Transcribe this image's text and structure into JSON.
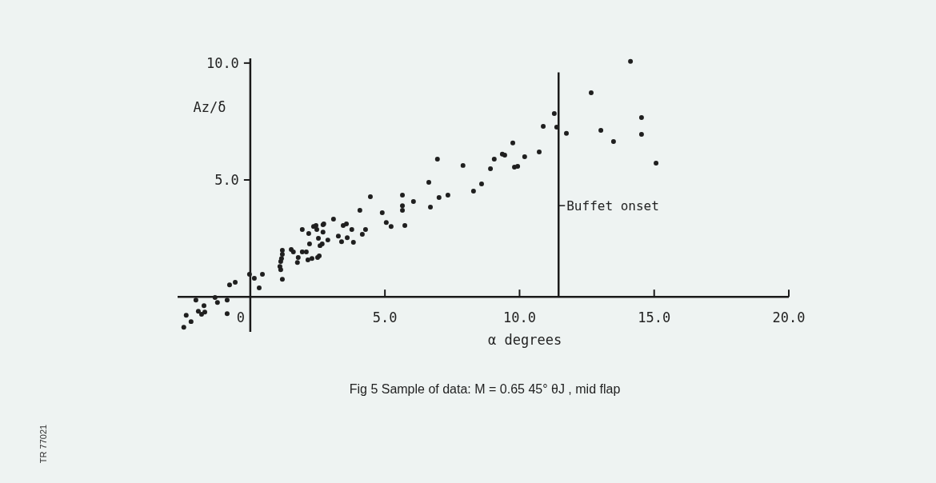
{
  "chart_data": {
    "type": "scatter",
    "xlabel": "α degrees",
    "ylabel": "Az/δ",
    "annotations": [
      "Fig 5    Sample of data:  M = 0.65 45°  θJ , mid flap",
      "TR 77021"
    ],
    "xlim": [
      -2.7,
      20
    ],
    "ylim": [
      -1.5,
      10.2
    ],
    "xticks": [
      {
        "value": 0,
        "label": "0"
      },
      {
        "value": 5,
        "label": "5.0"
      },
      {
        "value": 10,
        "label": "10.0"
      },
      {
        "value": 15,
        "label": "15.0"
      },
      {
        "value": 20,
        "label": "20.0"
      }
    ],
    "yticks": [
      {
        "value": 5,
        "label": "5.0"
      },
      {
        "value": 10,
        "label": "10.0"
      }
    ],
    "marker": "circle",
    "ref_lines": [
      {
        "axis": "x",
        "value": 11.45,
        "label": "Buffet onset",
        "color": "#1a1a1a"
      }
    ],
    "series": [
      {
        "color": "#1f1f1f",
        "x": [
          -2.47,
          -2.2,
          -2.38,
          -2.02,
          -1.93,
          -1.81,
          -1.72,
          -1.69,
          -1.31,
          -1.22,
          -0.86,
          -0.86,
          -0.77,
          -0.56,
          -0.03,
          0.15,
          0.33,
          0.45,
          1.13,
          1.1,
          1.16,
          1.19,
          1.19,
          1.19,
          1.13,
          1.52,
          1.6,
          1.75,
          1.78,
          1.93,
          1.93,
          2.08,
          2.14,
          2.17,
          2.2,
          2.29,
          2.35,
          2.44,
          2.47,
          2.5,
          2.53,
          2.56,
          2.59,
          2.67,
          2.7,
          2.7,
          2.73,
          2.88,
          3.09,
          3.27,
          3.39,
          3.45,
          3.57,
          3.6,
          3.77,
          3.83,
          4.07,
          4.16,
          4.28,
          4.46,
          4.9,
          5.05,
          5.23,
          5.65,
          5.65,
          5.65,
          5.74,
          6.06,
          6.63,
          6.69,
          6.95,
          7.01,
          7.34,
          7.9,
          8.29,
          8.59,
          8.92,
          9.06,
          9.36,
          9.45,
          9.75,
          9.81,
          9.93,
          10.19,
          10.73,
          10.88,
          11.29,
          11.38,
          11.74,
          12.66,
          13.02,
          13.49,
          14.12,
          14.53,
          14.53,
          15.07
        ],
        "values": [
          -1.3,
          -1.06,
          -0.79,
          -0.14,
          -0.62,
          -0.75,
          -0.38,
          -0.65,
          -0.03,
          -0.24,
          -0.14,
          -0.72,
          0.51,
          0.62,
          0.96,
          0.79,
          0.38,
          0.96,
          1.51,
          1.3,
          1.64,
          1.99,
          1.82,
          0.75,
          1.16,
          2.02,
          1.92,
          1.47,
          1.68,
          2.88,
          1.92,
          1.92,
          1.58,
          2.71,
          2.26,
          1.64,
          3.01,
          3.05,
          2.88,
          1.68,
          2.5,
          1.75,
          2.19,
          2.26,
          3.08,
          2.77,
          3.12,
          2.43,
          3.32,
          2.6,
          2.36,
          3.05,
          3.12,
          2.53,
          2.88,
          2.33,
          3.7,
          2.67,
          2.88,
          4.28,
          3.6,
          3.18,
          3.01,
          4.35,
          3.9,
          3.7,
          3.05,
          4.08,
          4.9,
          3.84,
          5.89,
          4.25,
          4.35,
          5.62,
          4.52,
          4.83,
          5.48,
          5.89,
          6.1,
          6.06,
          6.58,
          5.55,
          5.58,
          5.99,
          6.2,
          7.29,
          7.84,
          7.26,
          6.99,
          8.73,
          7.12,
          6.64,
          10.07,
          7.67,
          6.95,
          5.72
        ]
      }
    ]
  }
}
